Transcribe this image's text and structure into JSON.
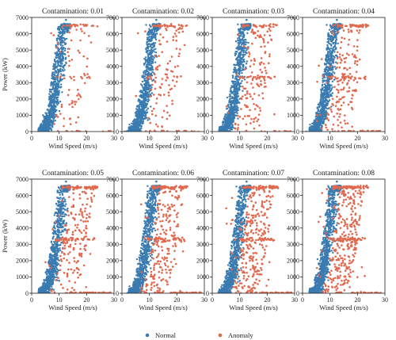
{
  "chart_data": {
    "type": "scatter",
    "xlabel": "Wind Speed (m/s)",
    "ylabel": "Power (kW)",
    "xlim": [
      0,
      30
    ],
    "ylim": [
      0,
      7000
    ],
    "xticks": [
      "0",
      "10",
      "20",
      "30"
    ],
    "yticks": [
      "0",
      "1000",
      "2000",
      "3000",
      "4000",
      "5000",
      "6000",
      "7000"
    ],
    "grid": false,
    "legend_position": "bottom-center",
    "series": [
      {
        "name": "Normal",
        "color": "#3a7bb0"
      },
      {
        "name": "Anomaly",
        "color": "#e0694f"
      }
    ],
    "panels": [
      {
        "title": "Contamination: 0.01",
        "contamination": 0.01
      },
      {
        "title": "Contamination: 0.02",
        "contamination": 0.02
      },
      {
        "title": "Contamination: 0.03",
        "contamination": 0.03
      },
      {
        "title": "Contamination: 0.04",
        "contamination": 0.04
      },
      {
        "title": "Contamination: 0.05",
        "contamination": 0.05
      },
      {
        "title": "Contamination: 0.06",
        "contamination": 0.06
      },
      {
        "title": "Contamination: 0.07",
        "contamination": 0.07
      },
      {
        "title": "Contamination: 0.08",
        "contamination": 0.08
      }
    ]
  },
  "legend": {
    "normal": "Normal",
    "anomaly": "Anomaly"
  }
}
